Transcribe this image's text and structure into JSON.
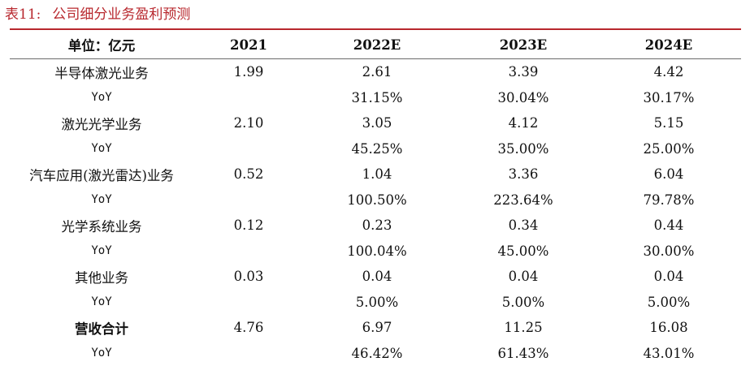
{
  "caption": {
    "number": "表11:",
    "title": "公司细分业务盈利预测"
  },
  "table": {
    "headers": [
      "单位：亿元",
      "2021",
      "2022E",
      "2023E",
      "2024E"
    ],
    "rows": [
      {
        "label": "半导体激光业务",
        "values": [
          "1.99",
          "2.61",
          "3.39",
          "4.42"
        ],
        "kind": "segment"
      },
      {
        "label": "YoY",
        "values": [
          "",
          "31.15%",
          "30.04%",
          "30.17%"
        ],
        "kind": "yoy"
      },
      {
        "label": "激光光学业务",
        "values": [
          "2.10",
          "3.05",
          "4.12",
          "5.15"
        ],
        "kind": "segment"
      },
      {
        "label": "YoY",
        "values": [
          "",
          "45.25%",
          "35.00%",
          "25.00%"
        ],
        "kind": "yoy"
      },
      {
        "label": "汽车应用(激光雷达)业务",
        "values": [
          "0.52",
          "1.04",
          "3.36",
          "6.04"
        ],
        "kind": "segment"
      },
      {
        "label": "YoY",
        "values": [
          "",
          "100.50%",
          "223.64%",
          "79.78%"
        ],
        "kind": "yoy"
      },
      {
        "label": "光学系统业务",
        "values": [
          "0.12",
          "0.23",
          "0.34",
          "0.44"
        ],
        "kind": "segment"
      },
      {
        "label": "YoY",
        "values": [
          "",
          "100.04%",
          "45.00%",
          "30.00%"
        ],
        "kind": "yoy"
      },
      {
        "label": "其他业务",
        "values": [
          "0.03",
          "0.04",
          "0.04",
          "0.04"
        ],
        "kind": "segment"
      },
      {
        "label": "YoY",
        "values": [
          "",
          "5.00%",
          "5.00%",
          "5.00%"
        ],
        "kind": "yoy"
      },
      {
        "label": "营收合计",
        "values": [
          "4.76",
          "6.97",
          "11.25",
          "16.08"
        ],
        "kind": "total"
      },
      {
        "label": "YoY",
        "values": [
          "",
          "46.42%",
          "61.43%",
          "43.01%"
        ],
        "kind": "yoy"
      }
    ]
  }
}
